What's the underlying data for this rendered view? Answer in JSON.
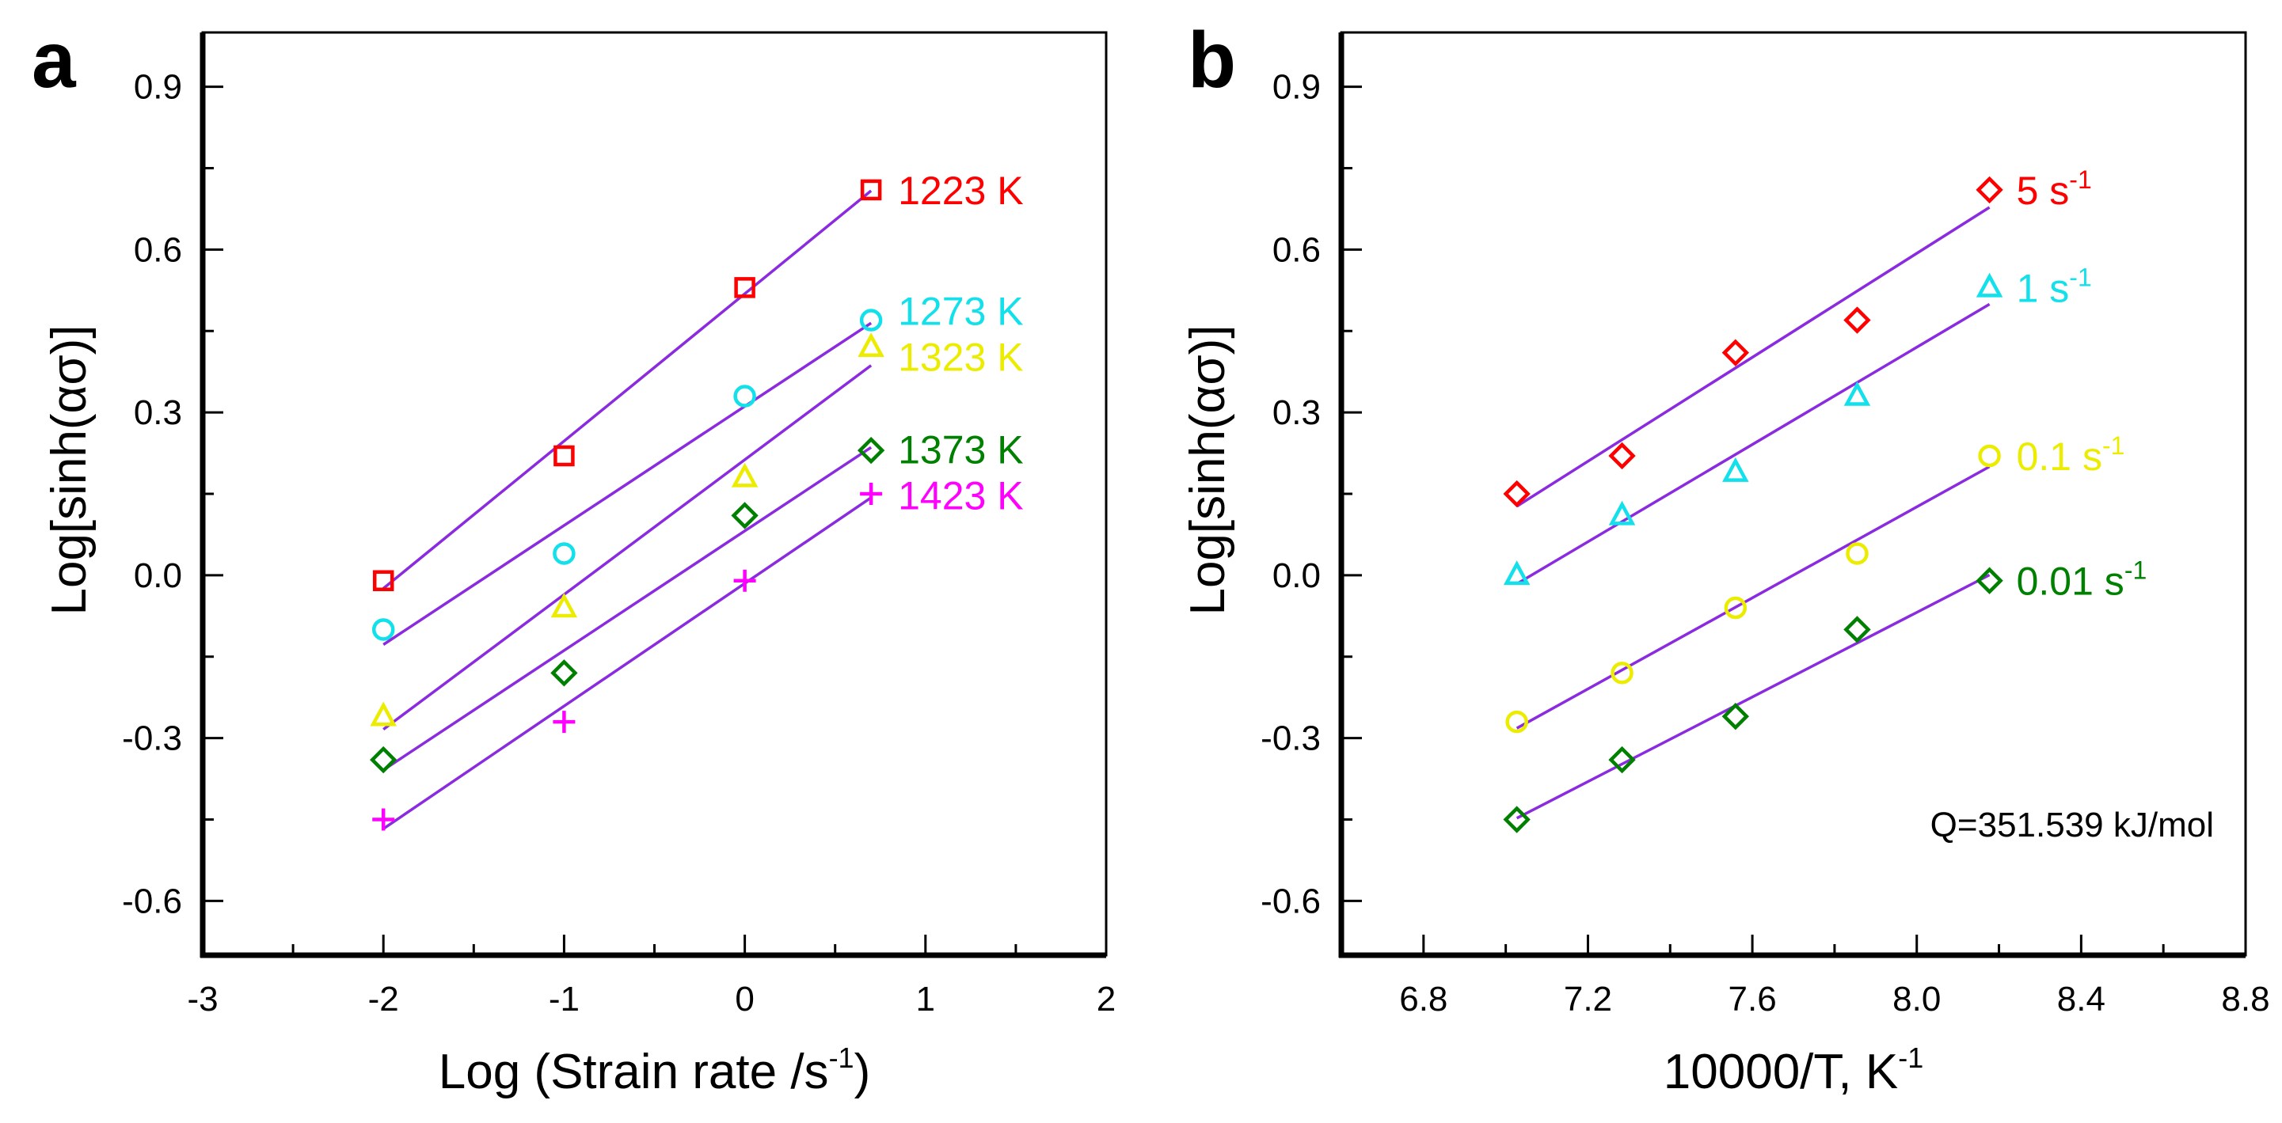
{
  "chart_data": [
    {
      "type": "scatter",
      "panel_label": "a",
      "xlabel": "Log (Strain rate /s",
      "xlabel_sup": "-1",
      "xlabel_end": ")",
      "ylabel": "Log[sinh(ασ)]",
      "xlim": [
        -3,
        2
      ],
      "ylim": [
        -0.7,
        1.0
      ],
      "xticks": [
        -3,
        -2,
        -1,
        0,
        1,
        2
      ],
      "xtick_labels": [
        "-3",
        "-2",
        "-1",
        "0",
        "1",
        "2"
      ],
      "yticks": [
        0.9,
        0.6,
        0.3,
        0.0,
        -0.3,
        -0.6
      ],
      "ytick_labels": [
        "0.9",
        "0.6",
        "0.3",
        "0.0",
        "-0.3",
        "-0.6"
      ],
      "grid": false,
      "fit_line_color": "#8b2be0",
      "x": [
        -2,
        -1,
        0,
        0.699
      ],
      "series": [
        {
          "name": "1223 K",
          "color": "#ff0000",
          "marker": "square",
          "values": [
            -0.01,
            0.22,
            0.53,
            0.71
          ]
        },
        {
          "name": "1273 K",
          "color": "#12e0ea",
          "marker": "circle",
          "values": [
            -0.1,
            0.04,
            0.33,
            0.47
          ]
        },
        {
          "name": "1323 K",
          "color": "#ecec00",
          "marker": "triangle",
          "values": [
            -0.26,
            -0.06,
            0.18,
            0.42
          ]
        },
        {
          "name": "1373 K",
          "color": "#008000",
          "marker": "diamond",
          "values": [
            -0.34,
            -0.18,
            0.11,
            0.23
          ]
        },
        {
          "name": "1423 K",
          "color": "#ff00ff",
          "marker": "plus",
          "values": [
            -0.45,
            -0.27,
            -0.01,
            0.15
          ]
        }
      ]
    },
    {
      "type": "scatter",
      "panel_label": "b",
      "xlabel": "10000/T, K",
      "xlabel_sup": "-1",
      "xlabel_end": "",
      "ylabel": "Log[sinh(ασ)]",
      "xlim": [
        6.6,
        8.8
      ],
      "ylim": [
        -0.7,
        1.0
      ],
      "xticks": [
        6.8,
        7.2,
        7.6,
        8.0,
        8.4,
        8.8
      ],
      "xtick_labels": [
        "6.8",
        "7.2",
        "7.6",
        "8.0",
        "8.4",
        "8.8"
      ],
      "yticks": [
        0.9,
        0.6,
        0.3,
        0.0,
        -0.3,
        -0.6
      ],
      "ytick_labels": [
        "0.9",
        "0.6",
        "0.3",
        "0.0",
        "-0.3",
        "-0.6"
      ],
      "grid": false,
      "fit_line_color": "#8b2be0",
      "annotation": "Q=351.539 kJ/mol",
      "x": [
        7.027,
        7.283,
        7.559,
        7.855,
        8.177
      ],
      "series": [
        {
          "name": "5 s",
          "sup": "-1",
          "color": "#ff0000",
          "marker": "diamond",
          "values": [
            0.15,
            0.22,
            0.41,
            0.47,
            0.71
          ]
        },
        {
          "name": "1 s",
          "sup": "-1",
          "color": "#12e0ea",
          "marker": "triangle",
          "values": [
            0.0,
            0.11,
            0.19,
            0.33,
            0.53
          ]
        },
        {
          "name": "0.1 s",
          "sup": "-1",
          "color": "#ecec00",
          "marker": "circle",
          "values": [
            -0.27,
            -0.18,
            -0.06,
            0.04,
            0.22
          ]
        },
        {
          "name": "0.01 s",
          "sup": "-1",
          "color": "#008000",
          "marker": "diamond",
          "values": [
            -0.45,
            -0.34,
            -0.26,
            -0.1,
            -0.01
          ]
        }
      ]
    }
  ]
}
